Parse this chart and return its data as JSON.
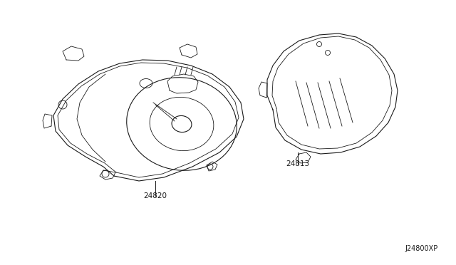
{
  "bg_color": "#ffffff",
  "line_color": "#1a1a1a",
  "label_24820": "24820",
  "label_24813": "24813",
  "diagram_code": "J24800XP",
  "figsize": [
    6.4,
    3.72
  ]
}
